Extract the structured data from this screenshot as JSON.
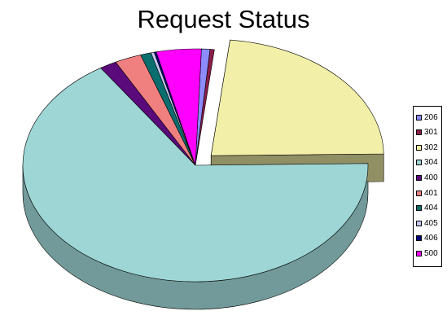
{
  "chart_data": {
    "type": "pie",
    "title": "Request Status",
    "categories": [
      "206",
      "301",
      "302",
      "304",
      "400",
      "401",
      "404",
      "405",
      "406",
      "500"
    ],
    "values": [
      0.8,
      0.4,
      23.0,
      66.0,
      1.6,
      2.5,
      1.0,
      0.3,
      0.2,
      4.2
    ],
    "colors": [
      "#8c8cff",
      "#8a1d4a",
      "#f2f0a8",
      "#9ed6d6",
      "#5a0a7a",
      "#f08080",
      "#0a6e6e",
      "#c4c8f2",
      "#000078",
      "#ff00ff"
    ],
    "exploded": [
      "302"
    ],
    "legend_position": "right"
  }
}
